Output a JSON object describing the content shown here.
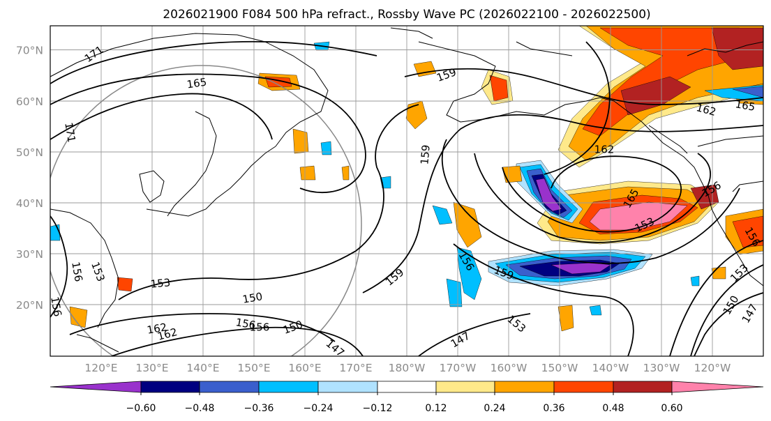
{
  "title": "2026021900 F084 500 hPa refract., Rossby Wave PC (2026022100 - 2026022500)",
  "map": {
    "lat_ticks": [
      "70°N",
      "60°N",
      "50°N",
      "40°N",
      "30°N",
      "20°N"
    ],
    "lon_ticks": [
      "120°E",
      "130°E",
      "140°E",
      "150°E",
      "160°E",
      "170°E",
      "180°W",
      "170°W",
      "160°W",
      "150°W",
      "140°W",
      "130°W",
      "120°W"
    ],
    "contour_labels": [
      "171",
      "165",
      "171",
      "159",
      "162",
      "165",
      "162",
      "159",
      "165",
      "153",
      "156",
      "156",
      "159",
      "156",
      "159",
      "153",
      "150",
      "156",
      "150",
      "153",
      "147",
      "162",
      "147",
      "156",
      "153",
      "150",
      "147",
      "153",
      "162",
      "156",
      "156"
    ],
    "colors": {
      "contour": "#000000",
      "coast": "#000000",
      "grid": "#9a9a9a",
      "circle": "#888888"
    }
  },
  "colorbar": {
    "ticks": [
      "−0.60",
      "−0.48",
      "−0.36",
      "−0.24",
      "−0.12",
      "0.12",
      "0.24",
      "0.36",
      "0.48",
      "0.60"
    ],
    "colors": [
      "#9932cc",
      "#000080",
      "#3a5fcd",
      "#00bfff",
      "#b0e2ff",
      "#ffffff",
      "#ffe98a",
      "#ffa500",
      "#ff4500",
      "#b22222",
      "#ff82ab"
    ]
  }
}
